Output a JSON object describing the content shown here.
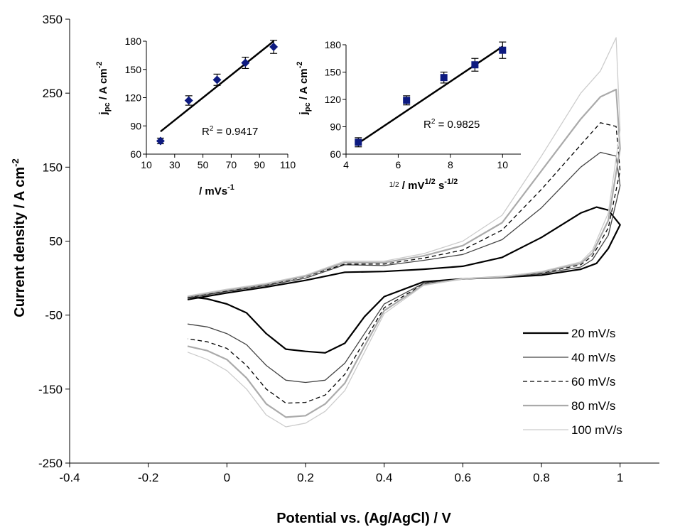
{
  "chart_data": [
    {
      "type": "line",
      "role": "main",
      "xlabel": "Potential vs. (Ag/AgCl) / V",
      "ylabel": "Current density /   A cm",
      "ylabel_sup": "-2",
      "xlim": [
        -0.4,
        1.1
      ],
      "ylim": [
        -250,
        350
      ],
      "x_ticks": [
        -0.4,
        -0.2,
        0,
        0.2,
        0.4,
        0.6,
        0.8,
        1
      ],
      "x_tick_labels": [
        "-0.4",
        "-0.2",
        "0",
        "0.2",
        "0.4",
        "0.6",
        "0.8",
        "1"
      ],
      "y_ticks": [
        -250,
        -150,
        -50,
        50,
        150,
        250,
        350
      ],
      "y_tick_labels": [
        "-250",
        "-150",
        "-50",
        "50",
        "150",
        "250",
        "350"
      ],
      "grid": false,
      "legend_position": "bottom-right",
      "series": [
        {
          "name": "20 mV/s",
          "color": "#000000",
          "dash": "",
          "width": 2.2,
          "forward": [
            [
              -0.1,
              -29
            ],
            [
              0.0,
              -20
            ],
            [
              0.1,
              -12
            ],
            [
              0.2,
              -3
            ],
            [
              0.3,
              8
            ],
            [
              0.4,
              9
            ],
            [
              0.5,
              12
            ],
            [
              0.6,
              16
            ],
            [
              0.7,
              28
            ],
            [
              0.8,
              55
            ],
            [
              0.9,
              88
            ],
            [
              0.94,
              96
            ],
            [
              0.97,
              92
            ],
            [
              1.0,
              72
            ]
          ],
          "reverse": [
            [
              1.0,
              72
            ],
            [
              0.97,
              40
            ],
            [
              0.94,
              20
            ],
            [
              0.9,
              12
            ],
            [
              0.8,
              4
            ],
            [
              0.7,
              1
            ],
            [
              0.6,
              -1
            ],
            [
              0.5,
              -5
            ],
            [
              0.4,
              -25
            ],
            [
              0.35,
              -52
            ],
            [
              0.3,
              -88
            ],
            [
              0.25,
              -101
            ],
            [
              0.2,
              -99
            ],
            [
              0.15,
              -96
            ],
            [
              0.1,
              -75
            ],
            [
              0.05,
              -47
            ],
            [
              0.0,
              -35
            ],
            [
              -0.05,
              -28
            ],
            [
              -0.1,
              -25
            ]
          ]
        },
        {
          "name": "40 mV/s",
          "color": "#444444",
          "dash": "",
          "width": 1.3,
          "forward": [
            [
              -0.1,
              -27
            ],
            [
              0.0,
              -18
            ],
            [
              0.1,
              -10
            ],
            [
              0.2,
              0
            ],
            [
              0.3,
              18
            ],
            [
              0.4,
              17
            ],
            [
              0.5,
              24
            ],
            [
              0.6,
              32
            ],
            [
              0.7,
              52
            ],
            [
              0.8,
              95
            ],
            [
              0.9,
              150
            ],
            [
              0.95,
              170
            ],
            [
              0.99,
              165
            ],
            [
              1.0,
              125
            ]
          ],
          "reverse": [
            [
              1.0,
              125
            ],
            [
              0.97,
              58
            ],
            [
              0.93,
              25
            ],
            [
              0.9,
              15
            ],
            [
              0.8,
              6
            ],
            [
              0.7,
              1
            ],
            [
              0.6,
              -1
            ],
            [
              0.5,
              -7
            ],
            [
              0.4,
              -35
            ],
            [
              0.35,
              -75
            ],
            [
              0.3,
              -115
            ],
            [
              0.25,
              -138
            ],
            [
              0.2,
              -141
            ],
            [
              0.15,
              -138
            ],
            [
              0.1,
              -118
            ],
            [
              0.05,
              -90
            ],
            [
              0.0,
              -75
            ],
            [
              -0.05,
              -66
            ],
            [
              -0.1,
              -62
            ]
          ]
        },
        {
          "name": "60 mV/s",
          "color": "#000000",
          "dash": "6,4",
          "width": 1.3,
          "forward": [
            [
              -0.1,
              -26
            ],
            [
              0.0,
              -17
            ],
            [
              0.1,
              -9
            ],
            [
              0.2,
              2
            ],
            [
              0.3,
              19
            ],
            [
              0.4,
              19
            ],
            [
              0.5,
              27
            ],
            [
              0.6,
              38
            ],
            [
              0.7,
              65
            ],
            [
              0.8,
              120
            ],
            [
              0.9,
              180
            ],
            [
              0.95,
              210
            ],
            [
              0.99,
              205
            ],
            [
              1.0,
              145
            ]
          ],
          "reverse": [
            [
              1.0,
              145
            ],
            [
              0.97,
              68
            ],
            [
              0.93,
              30
            ],
            [
              0.9,
              18
            ],
            [
              0.8,
              7
            ],
            [
              0.7,
              2
            ],
            [
              0.6,
              -1
            ],
            [
              0.5,
              -8
            ],
            [
              0.4,
              -40
            ],
            [
              0.35,
              -85
            ],
            [
              0.3,
              -130
            ],
            [
              0.25,
              -158
            ],
            [
              0.2,
              -168
            ],
            [
              0.15,
              -169
            ],
            [
              0.1,
              -150
            ],
            [
              0.05,
              -118
            ],
            [
              0.0,
              -95
            ],
            [
              -0.05,
              -86
            ],
            [
              -0.1,
              -82
            ]
          ]
        },
        {
          "name": "80 mV/s",
          "color": "#aaaaaa",
          "dash": "",
          "width": 2.2,
          "forward": [
            [
              -0.1,
              -25
            ],
            [
              0.0,
              -16
            ],
            [
              0.1,
              -8
            ],
            [
              0.2,
              3
            ],
            [
              0.3,
              21
            ],
            [
              0.4,
              21
            ],
            [
              0.5,
              30
            ],
            [
              0.6,
              44
            ],
            [
              0.7,
              75
            ],
            [
              0.8,
              145
            ],
            [
              0.9,
              215
            ],
            [
              0.95,
              245
            ],
            [
              0.99,
              255
            ],
            [
              1.0,
              175
            ]
          ],
          "reverse": [
            [
              1.0,
              175
            ],
            [
              0.97,
              78
            ],
            [
              0.93,
              34
            ],
            [
              0.9,
              20
            ],
            [
              0.8,
              8
            ],
            [
              0.7,
              2
            ],
            [
              0.6,
              -1
            ],
            [
              0.5,
              -9
            ],
            [
              0.4,
              -44
            ],
            [
              0.35,
              -92
            ],
            [
              0.3,
              -142
            ],
            [
              0.25,
              -170
            ],
            [
              0.2,
              -186
            ],
            [
              0.15,
              -188
            ],
            [
              0.1,
              -170
            ],
            [
              0.05,
              -135
            ],
            [
              0.0,
              -110
            ],
            [
              -0.05,
              -98
            ],
            [
              -0.1,
              -92
            ]
          ]
        },
        {
          "name": "100 mV/s",
          "color": "#cccccc",
          "dash": "",
          "width": 1.3,
          "forward": [
            [
              -0.1,
              -24
            ],
            [
              0.0,
              -15
            ],
            [
              0.1,
              -7
            ],
            [
              0.2,
              4
            ],
            [
              0.3,
              23
            ],
            [
              0.4,
              23
            ],
            [
              0.5,
              33
            ],
            [
              0.6,
              50
            ],
            [
              0.7,
              85
            ],
            [
              0.8,
              165
            ],
            [
              0.9,
              250
            ],
            [
              0.95,
              280
            ],
            [
              0.99,
              325
            ],
            [
              1.0,
              200
            ]
          ],
          "reverse": [
            [
              1.0,
              200
            ],
            [
              0.97,
              88
            ],
            [
              0.93,
              38
            ],
            [
              0.9,
              22
            ],
            [
              0.8,
              9
            ],
            [
              0.7,
              2
            ],
            [
              0.6,
              -1
            ],
            [
              0.5,
              -10
            ],
            [
              0.4,
              -48
            ],
            [
              0.35,
              -100
            ],
            [
              0.3,
              -152
            ],
            [
              0.25,
              -180
            ],
            [
              0.2,
              -196
            ],
            [
              0.15,
              -201
            ],
            [
              0.1,
              -185
            ],
            [
              0.05,
              -150
            ],
            [
              0.0,
              -125
            ],
            [
              -0.05,
              -110
            ],
            [
              -0.1,
              -100
            ]
          ]
        }
      ]
    },
    {
      "type": "scatter",
      "role": "inset-1",
      "ylabel": "j",
      "ylabel_sub": "pc",
      "ylabel_rest": " /   A cm",
      "ylabel_sup": "-2",
      "xlabel": " / mVs",
      "xlabel_sup": "-1",
      "xlim": [
        10,
        110
      ],
      "ylim": [
        60,
        180
      ],
      "x_ticks": [
        10,
        30,
        50,
        70,
        90,
        110
      ],
      "y_ticks": [
        60,
        90,
        120,
        150,
        180
      ],
      "x": [
        20,
        40,
        60,
        80,
        100
      ],
      "y": [
        74,
        117,
        139,
        157,
        174
      ],
      "error": [
        3,
        5,
        6,
        6,
        7
      ],
      "trendline": [
        [
          20,
          84
        ],
        [
          100,
          180
        ]
      ],
      "marker": "diamond",
      "marker_color": "#0d1a80",
      "annotation": "R",
      "annotation_sup": "2",
      "annotation_rest": " = 0.9417"
    },
    {
      "type": "scatter",
      "role": "inset-2",
      "ylabel": "j",
      "ylabel_sub": "pc",
      "ylabel_rest": " /   A cm",
      "ylabel_sup": "-2",
      "xlabel_sup1": "1/2",
      "xlabel": " / mV",
      "xlabel_sup2": "1/2",
      "xlabel_mid": " s",
      "xlabel_sup3": "-1/2",
      "xlim": [
        4,
        10.7
      ],
      "ylim": [
        60,
        180
      ],
      "x_ticks": [
        4,
        6,
        8,
        10
      ],
      "y_ticks": [
        60,
        90,
        120,
        150,
        180
      ],
      "x": [
        4.47,
        6.32,
        7.75,
        8.94,
        10.0
      ],
      "y": [
        73,
        119,
        144,
        158,
        174
      ],
      "error": [
        5,
        5,
        6,
        7,
        9
      ],
      "trendline": [
        [
          4.47,
          72
        ],
        [
          10.0,
          178
        ]
      ],
      "marker": "square",
      "marker_color": "#0d1a80",
      "annotation": "R",
      "annotation_sup": "2",
      "annotation_rest": " = 0.9825"
    }
  ]
}
